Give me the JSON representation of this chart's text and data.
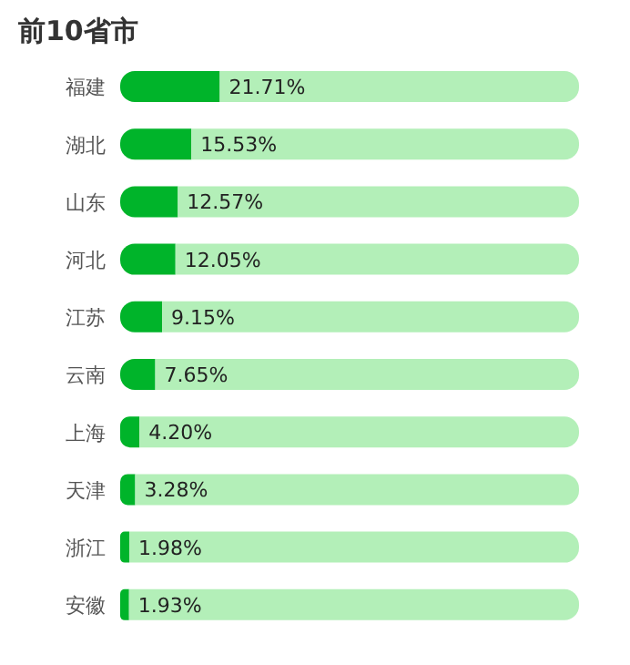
{
  "chart_data": {
    "type": "bar",
    "orientation": "horizontal",
    "stacked": true,
    "title": "前10省市",
    "categories": [
      "福建",
      "湖北",
      "山东",
      "河北",
      "江苏",
      "云南",
      "上海",
      "天津",
      "浙江",
      "安徽"
    ],
    "series": [
      {
        "color": "#00b42a",
        "values": [
          21.71,
          15.53,
          12.57,
          12.05,
          9.15,
          7.65,
          4.2,
          3.28,
          1.98,
          1.93
        ],
        "value_labels": [
          "21.71%",
          "15.53%",
          "12.57%",
          "12.05%",
          "9.15%",
          "7.65%",
          "4.20%",
          "3.28%",
          "1.98%",
          "1.93%"
        ]
      },
      {
        "color": "#b3efb8",
        "values": [
          78.29,
          84.47,
          87.43,
          87.95,
          90.85,
          92.35,
          95.8,
          96.72,
          98.02,
          98.07
        ]
      }
    ],
    "xlim": [
      0,
      100
    ]
  }
}
